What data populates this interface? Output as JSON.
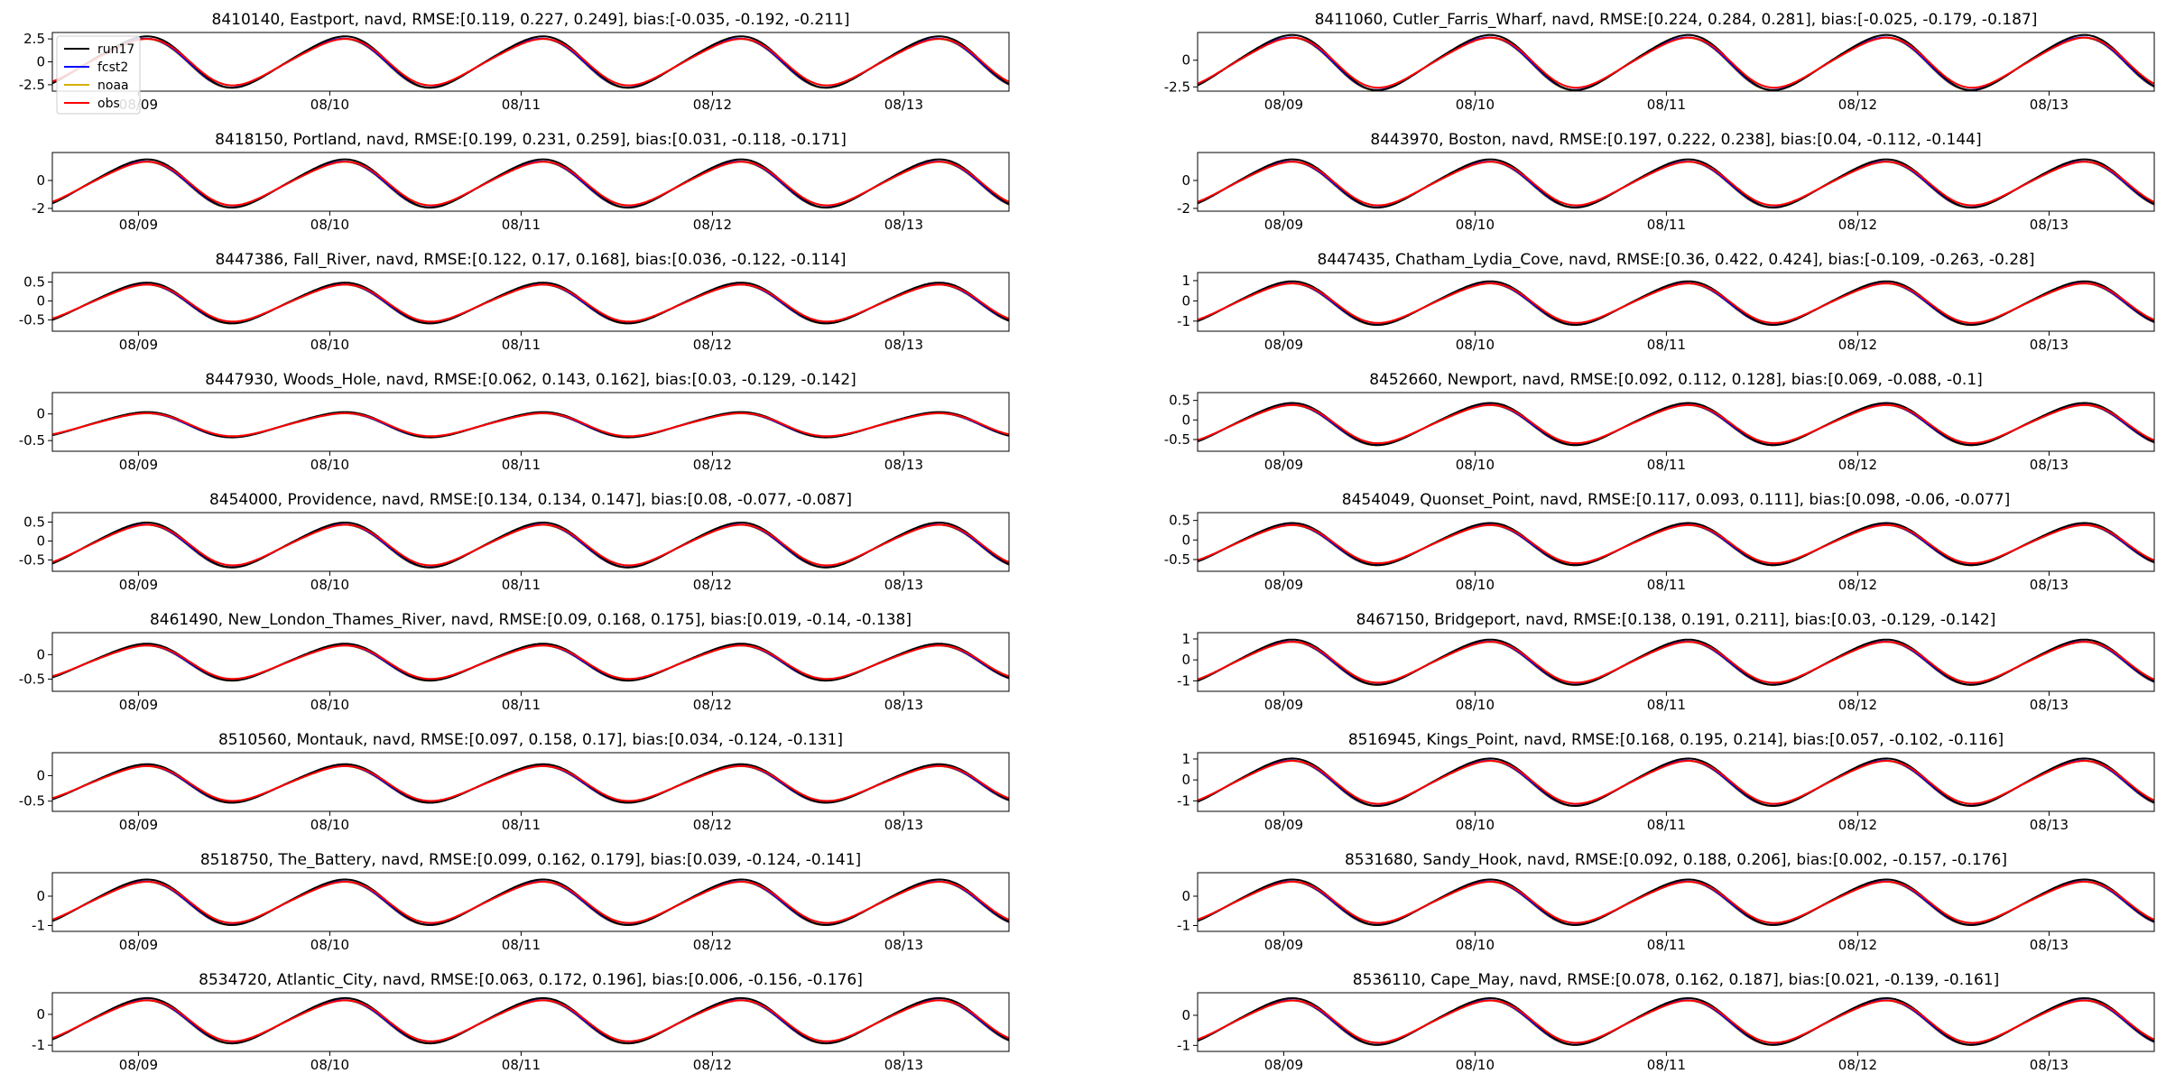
{
  "chart_data": [
    {
      "type": "line",
      "title": "8410140, Eastport, navd, RMSE:[0.119, 0.227, 0.249], bias:[-0.035, -0.192, -0.211]",
      "amplitude": 2.6,
      "offset": 0.0,
      "yticks": [
        -2.5,
        0.0,
        2.5
      ],
      "ylim": [
        -3.2,
        3.2
      ],
      "xticks": [
        "08/09",
        "08/10",
        "08/11",
        "08/12",
        "08/13"
      ]
    },
    {
      "type": "line",
      "title": "8411060, Cutler_Farris_Wharf, navd, RMSE:[0.224, 0.284, 0.281], bias:[-0.025, -0.179, -0.187]",
      "amplitude": 2.4,
      "offset": -0.2,
      "yticks": [
        -2.5,
        0.0
      ],
      "ylim": [
        -2.9,
        2.6
      ],
      "xticks": [
        "08/09",
        "08/10",
        "08/11",
        "08/12",
        "08/13"
      ]
    },
    {
      "type": "line",
      "title": "8418150, Portland, navd, RMSE:[0.199, 0.231, 0.259], bias:[0.031, -0.118, -0.171]",
      "amplitude": 1.6,
      "offset": -0.2,
      "yticks": [
        -2,
        0
      ],
      "ylim": [
        -2.2,
        2.0
      ],
      "xticks": [
        "08/09",
        "08/10",
        "08/11",
        "08/12",
        "08/13"
      ]
    },
    {
      "type": "line",
      "title": "8443970, Boston, navd, RMSE:[0.197, 0.222, 0.238], bias:[0.04, -0.112, -0.144]",
      "amplitude": 1.6,
      "offset": -0.2,
      "yticks": [
        -2,
        0
      ],
      "ylim": [
        -2.2,
        2.0
      ],
      "xticks": [
        "08/09",
        "08/10",
        "08/11",
        "08/12",
        "08/13"
      ]
    },
    {
      "type": "line",
      "title": "8447386, Fall_River, navd, RMSE:[0.122, 0.17, 0.168], bias:[0.036, -0.122, -0.114]",
      "amplitude": 0.5,
      "offset": -0.05,
      "yticks": [
        -0.5,
        0.0,
        0.5
      ],
      "ylim": [
        -0.8,
        0.75
      ],
      "xticks": [
        "08/09",
        "08/10",
        "08/11",
        "08/12",
        "08/13"
      ]
    },
    {
      "type": "line",
      "title": "8447435, Chatham_Lydia_Cove, navd, RMSE:[0.36, 0.422, 0.424], bias:[-0.109, -0.263, -0.28]",
      "amplitude": 1.0,
      "offset": -0.1,
      "yticks": [
        -1,
        0,
        1
      ],
      "ylim": [
        -1.5,
        1.4
      ],
      "xticks": [
        "08/09",
        "08/10",
        "08/11",
        "08/12",
        "08/13"
      ]
    },
    {
      "type": "line",
      "title": "8447930, Woods_Hole, navd, RMSE:[0.062, 0.143, 0.162], bias:[0.03, -0.129, -0.142]",
      "amplitude": 0.22,
      "offset": -0.2,
      "yticks": [
        -0.5,
        0.0
      ],
      "ylim": [
        -0.7,
        0.4
      ],
      "xticks": [
        "08/09",
        "08/10",
        "08/11",
        "08/12",
        "08/13"
      ]
    },
    {
      "type": "line",
      "title": "8452660, Newport, navd, RMSE:[0.092, 0.112, 0.128], bias:[0.069, -0.088, -0.1]",
      "amplitude": 0.5,
      "offset": -0.1,
      "yticks": [
        -0.5,
        0.0,
        0.5
      ],
      "ylim": [
        -0.8,
        0.7
      ],
      "xticks": [
        "08/09",
        "08/10",
        "08/11",
        "08/12",
        "08/13"
      ]
    },
    {
      "type": "line",
      "title": "8454000, Providence, navd, RMSE:[0.134, 0.134, 0.147], bias:[0.08, -0.077, -0.087]",
      "amplitude": 0.55,
      "offset": -0.1,
      "yticks": [
        -0.5,
        0.0,
        0.5
      ],
      "ylim": [
        -0.8,
        0.75
      ],
      "xticks": [
        "08/09",
        "08/10",
        "08/11",
        "08/12",
        "08/13"
      ]
    },
    {
      "type": "line",
      "title": "8454049, Quonset_Point, navd, RMSE:[0.117, 0.093, 0.111], bias:[0.098, -0.06, -0.077]",
      "amplitude": 0.5,
      "offset": -0.1,
      "yticks": [
        -0.5,
        0.0,
        0.5
      ],
      "ylim": [
        -0.8,
        0.7
      ],
      "xticks": [
        "08/09",
        "08/10",
        "08/11",
        "08/12",
        "08/13"
      ]
    },
    {
      "type": "line",
      "title": "8461490, New_London_Thames_River, navd, RMSE:[0.09, 0.168, 0.175], bias:[0.019, -0.14, -0.138]",
      "amplitude": 0.35,
      "offset": -0.15,
      "yticks": [
        -0.5,
        0.0
      ],
      "ylim": [
        -0.75,
        0.45
      ],
      "xticks": [
        "08/09",
        "08/10",
        "08/11",
        "08/12",
        "08/13"
      ]
    },
    {
      "type": "line",
      "title": "8467150, Bridgeport, navd, RMSE:[0.138, 0.191, 0.211], bias:[0.03, -0.129, -0.142]",
      "amplitude": 1.0,
      "offset": -0.1,
      "yticks": [
        -1,
        0,
        1
      ],
      "ylim": [
        -1.5,
        1.3
      ],
      "xticks": [
        "08/09",
        "08/10",
        "08/11",
        "08/12",
        "08/13"
      ]
    },
    {
      "type": "line",
      "title": "8510560, Montauk, navd, RMSE:[0.097, 0.158, 0.17], bias:[0.034, -0.124, -0.131]",
      "amplitude": 0.35,
      "offset": -0.15,
      "yticks": [
        -0.5,
        0.0
      ],
      "ylim": [
        -0.7,
        0.45
      ],
      "xticks": [
        "08/09",
        "08/10",
        "08/11",
        "08/12",
        "08/13"
      ]
    },
    {
      "type": "line",
      "title": "8516945, Kings_Point, navd, RMSE:[0.168, 0.195, 0.214], bias:[0.057, -0.102, -0.116]",
      "amplitude": 1.05,
      "offset": -0.1,
      "yticks": [
        -1,
        0,
        1
      ],
      "ylim": [
        -1.5,
        1.3
      ],
      "xticks": [
        "08/09",
        "08/10",
        "08/11",
        "08/12",
        "08/13"
      ]
    },
    {
      "type": "line",
      "title": "8518750, The_Battery, navd, RMSE:[0.099, 0.162, 0.179], bias:[0.039, -0.124, -0.141]",
      "amplitude": 0.72,
      "offset": -0.2,
      "yticks": [
        -1,
        0
      ],
      "ylim": [
        -1.2,
        0.8
      ],
      "xticks": [
        "08/09",
        "08/10",
        "08/11",
        "08/12",
        "08/13"
      ]
    },
    {
      "type": "line",
      "title": "8531680, Sandy_Hook, navd, RMSE:[0.092, 0.188, 0.206], bias:[0.002, -0.157, -0.176]",
      "amplitude": 0.72,
      "offset": -0.2,
      "yticks": [
        -1,
        0
      ],
      "ylim": [
        -1.2,
        0.8
      ],
      "xticks": [
        "08/09",
        "08/10",
        "08/11",
        "08/12",
        "08/13"
      ]
    },
    {
      "type": "line",
      "title": "8534720, Atlantic_City, navd, RMSE:[0.063, 0.172, 0.196], bias:[0.006, -0.156, -0.176]",
      "amplitude": 0.68,
      "offset": -0.2,
      "yticks": [
        -1,
        0
      ],
      "ylim": [
        -1.2,
        0.7
      ],
      "xticks": [
        "08/09",
        "08/10",
        "08/11",
        "08/12",
        "08/13"
      ]
    },
    {
      "type": "line",
      "title": "8536110, Cape_May, navd, RMSE:[0.078, 0.162, 0.187], bias:[0.021, -0.139, -0.161]",
      "amplitude": 0.72,
      "offset": -0.2,
      "yticks": [
        -1,
        0
      ],
      "ylim": [
        -1.2,
        0.75
      ],
      "xticks": [
        "08/09",
        "08/10",
        "08/11",
        "08/12",
        "08/13"
      ]
    }
  ],
  "legend": {
    "placement": "top-left",
    "entries": [
      {
        "name": "run17",
        "color": "#000000"
      },
      {
        "name": "fcst2",
        "color": "#0000ff"
      },
      {
        "name": "noaa",
        "color": "#d4b000"
      },
      {
        "name": "obs",
        "color": "#ff0000"
      }
    ]
  },
  "series_params": {
    "run17": {
      "amp_scale": 1.05,
      "bias": 0.02,
      "phase": 0.0
    },
    "fcst2": {
      "amp_scale": 1.0,
      "bias": -0.1,
      "phase": 0.03
    },
    "noaa": {
      "amp_scale": 1.0,
      "bias": -0.12,
      "phase": 0.05
    },
    "obs": {
      "amp_scale": 0.95,
      "bias": 0.0,
      "phase": -0.02
    }
  }
}
